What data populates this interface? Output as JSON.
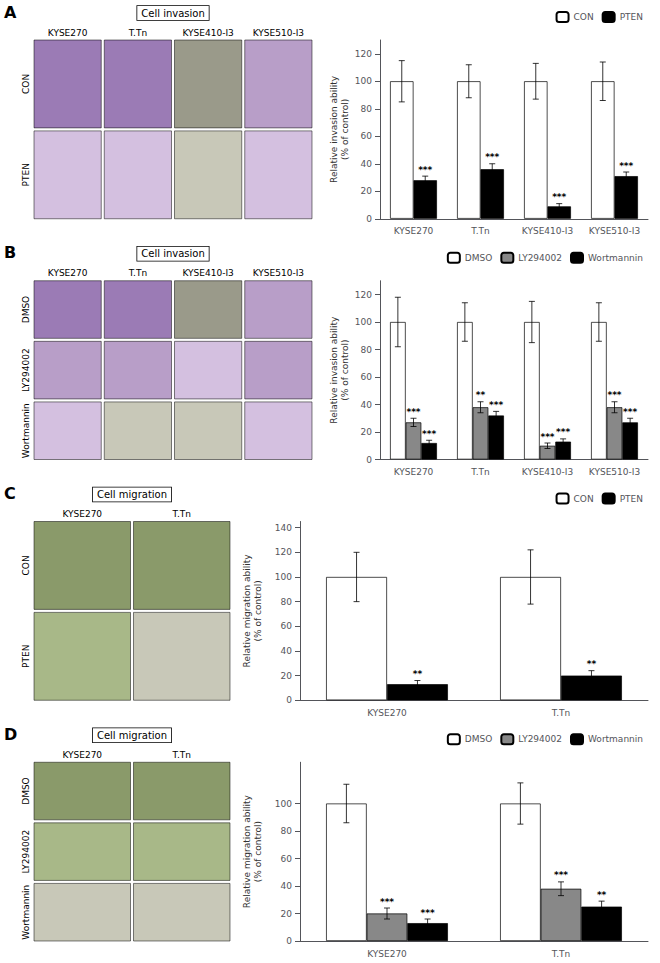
{
  "chart_data": [
    {
      "type": "bar",
      "label": "A",
      "title": "Cell invasion",
      "categories": [
        "KYSE270",
        "T.Tn",
        "KYSE410-I3",
        "KYSE510-I3"
      ],
      "ylabel": "Relative invasion ability\n(% of control)",
      "ylim": [
        0,
        130
      ],
      "yticks": [
        0,
        20,
        40,
        60,
        80,
        100,
        120
      ],
      "grid": false,
      "legend": "upper right",
      "series": [
        {
          "name": "CON",
          "color": "white",
          "values": [
            100,
            100,
            100,
            100
          ],
          "errors": [
            15,
            12,
            13,
            14
          ]
        },
        {
          "name": "PTEN",
          "color": "black",
          "values": [
            28,
            36,
            9,
            31
          ],
          "errors": [
            3,
            4,
            2,
            3
          ],
          "annotations": [
            "***",
            "***",
            "***",
            "***"
          ]
        }
      ],
      "images": {
        "rows": [
          "CON",
          "PTEN"
        ],
        "colors": [
          [
            "#9b7bb5",
            "#9b7bb5",
            "#9a9a8a",
            "#b89ec8"
          ],
          [
            "#d4c0e0",
            "#d4c0e0",
            "#c8c8b8",
            "#d4c0e0"
          ]
        ]
      }
    },
    {
      "type": "bar",
      "label": "B",
      "title": "Cell invasion",
      "categories": [
        "KYSE270",
        "T.Tn",
        "KYSE410-I3",
        "KYSE510-I3"
      ],
      "ylabel": "Relative invasion ability\n(% of control)",
      "ylim": [
        0,
        130
      ],
      "yticks": [
        0,
        20,
        40,
        60,
        80,
        100,
        120
      ],
      "grid": false,
      "legend": "upper right",
      "series": [
        {
          "name": "DMSO",
          "color": "white",
          "values": [
            100,
            100,
            100,
            100
          ],
          "errors": [
            18,
            14,
            15,
            14
          ]
        },
        {
          "name": "LY294002",
          "color": "#888888",
          "values": [
            27,
            38,
            10,
            38
          ],
          "errors": [
            3,
            4,
            2,
            4
          ],
          "annotations": [
            "***",
            "**",
            "***",
            "***"
          ]
        },
        {
          "name": "Wortmannin",
          "color": "black",
          "values": [
            12,
            32,
            13,
            27
          ],
          "errors": [
            2,
            3,
            2,
            3
          ],
          "annotations": [
            "***",
            "***",
            "***",
            "***"
          ]
        }
      ],
      "images": {
        "rows": [
          "DMSO",
          "LY294002",
          "Wortmannin"
        ],
        "colors": [
          [
            "#9b7bb5",
            "#9b7bb5",
            "#9a9a8a",
            "#b89ec8"
          ],
          [
            "#b89ec8",
            "#b89ec8",
            "#d4c0e0",
            "#b89ec8"
          ],
          [
            "#d4c0e0",
            "#c8c8b8",
            "#c8c8b8",
            "#d4c0e0"
          ]
        ]
      }
    },
    {
      "type": "bar",
      "label": "C",
      "title": "Cell migration",
      "categories": [
        "KYSE270",
        "T.Tn"
      ],
      "ylabel": "Relative migration ability\n(% of control)",
      "ylim": [
        0,
        145
      ],
      "yticks": [
        0,
        20,
        40,
        60,
        80,
        100,
        120,
        140
      ],
      "grid": false,
      "legend": "upper right",
      "series": [
        {
          "name": "CON",
          "color": "white",
          "values": [
            100,
            100
          ],
          "errors": [
            20,
            22
          ]
        },
        {
          "name": "PTEN",
          "color": "black",
          "values": [
            13,
            20
          ],
          "errors": [
            3,
            4
          ],
          "annotations": [
            "**",
            "**"
          ]
        }
      ],
      "images": {
        "rows": [
          "CON",
          "PTEN"
        ],
        "colors": [
          [
            "#8a9a6a",
            "#8a9a6a"
          ],
          [
            "#a8b888",
            "#c8c8b8"
          ]
        ]
      }
    },
    {
      "type": "bar",
      "label": "D",
      "title": "Cell migration",
      "categories": [
        "KYSE270",
        "T.Tn"
      ],
      "ylabel": "Relative migration ability\n(% of control)",
      "ylim": [
        0,
        130
      ],
      "yticks": [
        0,
        20,
        40,
        60,
        80,
        100
      ],
      "grid": false,
      "legend": "upper right",
      "series": [
        {
          "name": "DMSO",
          "color": "white",
          "values": [
            100,
            100
          ],
          "errors": [
            14,
            15
          ]
        },
        {
          "name": "LY294002",
          "color": "#888888",
          "values": [
            20,
            38
          ],
          "errors": [
            4,
            5
          ],
          "annotations": [
            "***",
            "***"
          ]
        },
        {
          "name": "Wortmannin",
          "color": "black",
          "values": [
            13,
            25
          ],
          "errors": [
            3,
            4
          ],
          "annotations": [
            "***",
            "**"
          ]
        }
      ],
      "images": {
        "rows": [
          "DMSO",
          "LY294002",
          "Wortmannin"
        ],
        "colors": [
          [
            "#8a9a6a",
            "#8a9a6a"
          ],
          [
            "#a8b888",
            "#a8b888"
          ],
          [
            "#c8c8b8",
            "#c8c8b8"
          ]
        ]
      }
    }
  ]
}
